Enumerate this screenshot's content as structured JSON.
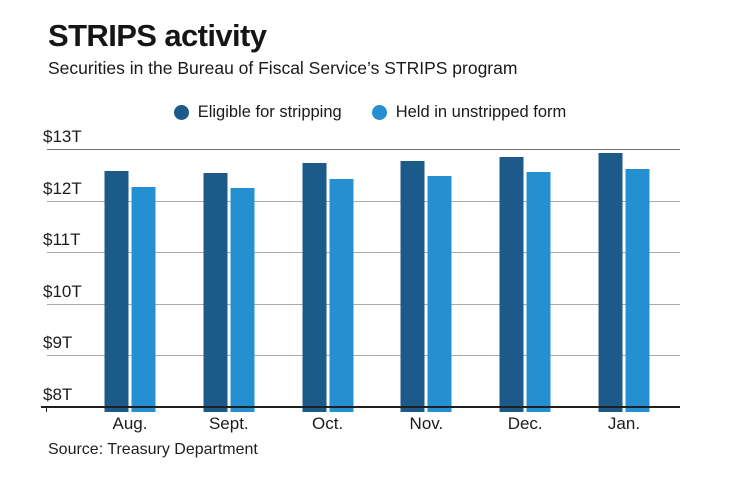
{
  "header": {
    "title": "STRIPS activity",
    "subtitle": "Securities in the Bureau of Fiscal Service’s STRIPS program"
  },
  "source_note": "Source: Treasury Department",
  "colors": {
    "eligible_bar": "#1c5b89",
    "unstripped_bar": "#2490d2",
    "gridline": "#a9a9a9",
    "gridline_top": "#6e6e6e",
    "axis": "#1f1f1f",
    "text": "#1a1a1a"
  },
  "chart_data": {
    "type": "bar",
    "title": "STRIPS activity",
    "subtitle": "Securities in the Bureau of Fiscal Service’s STRIPS program",
    "categories": [
      "Aug.",
      "Sept.",
      "Oct.",
      "Nov.",
      "Dec.",
      "Jan."
    ],
    "series": [
      {
        "name": "Eligible for stripping",
        "color": "#1c5b89",
        "values": [
          12.57,
          12.54,
          12.72,
          12.76,
          12.85,
          12.92
        ]
      },
      {
        "name": "Held in unstripped form",
        "color": "#2490d2",
        "values": [
          12.27,
          12.24,
          12.41,
          12.47,
          12.56,
          12.61
        ]
      }
    ],
    "value_unit": "trillion USD",
    "y_ticks": [
      {
        "label": "$13T",
        "value": 13
      },
      {
        "label": "$12T",
        "value": 12
      },
      {
        "label": "$11T",
        "value": 11
      },
      {
        "label": "$10T",
        "value": 10
      },
      {
        "label": "$9T",
        "value": 9
      },
      {
        "label": "$8T",
        "value": 8
      }
    ],
    "ylim": [
      8,
      13
    ],
    "grid": true,
    "legend_position": "top-center",
    "source": "Source: Treasury Department"
  }
}
